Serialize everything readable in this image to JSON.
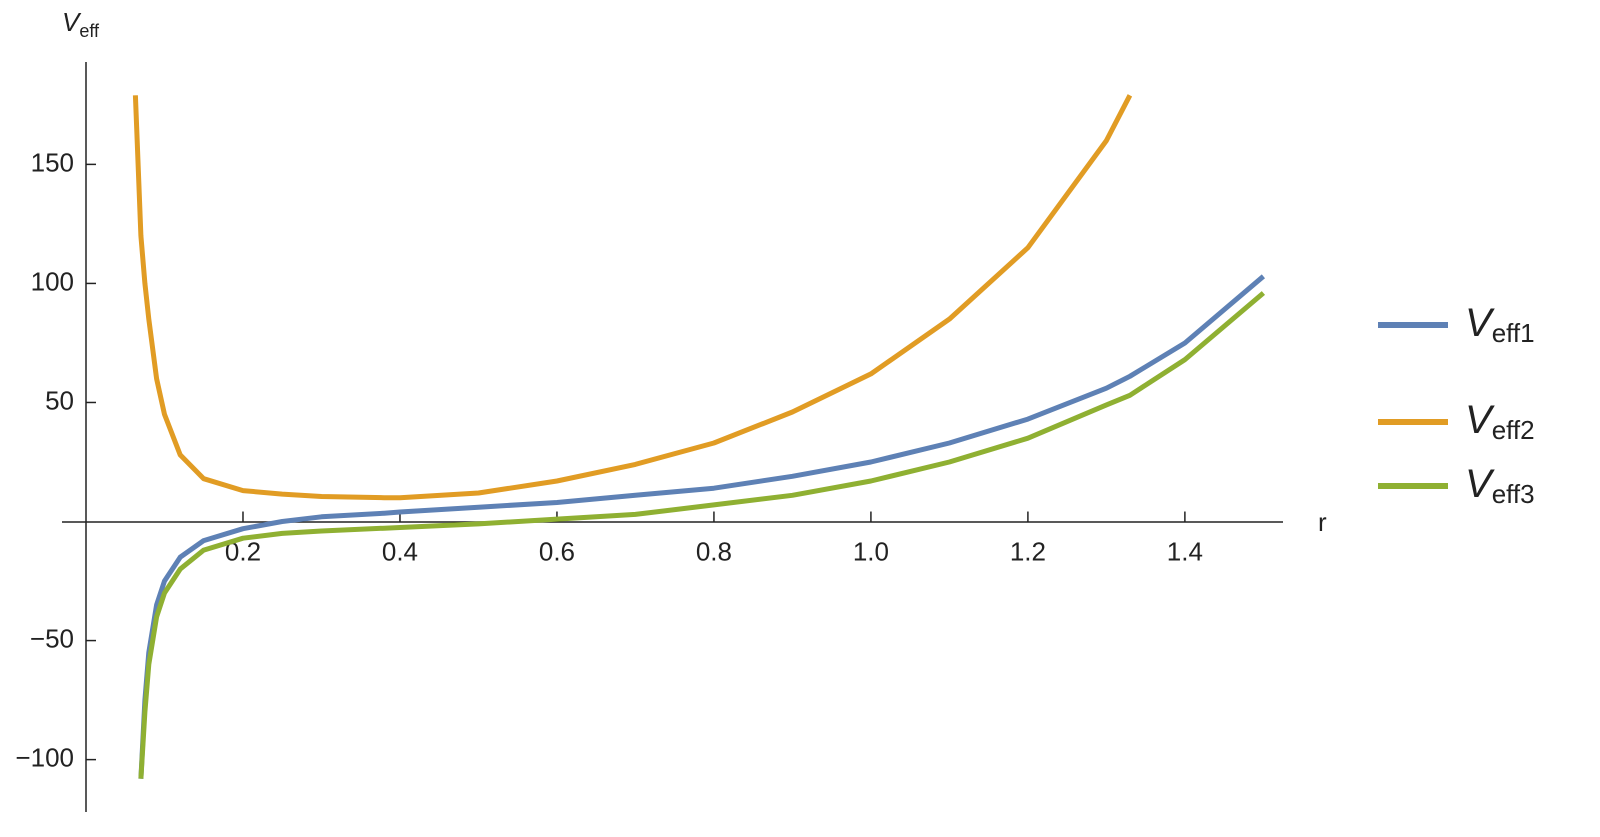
{
  "chart_data": {
    "type": "line",
    "x_label": "r",
    "y_label": "Veff",
    "x": [
      0.063,
      0.07,
      0.075,
      0.08,
      0.09,
      0.1,
      0.12,
      0.15,
      0.2,
      0.25,
      0.3,
      0.38,
      0.4,
      0.5,
      0.6,
      0.7,
      0.8,
      0.9,
      1.0,
      1.1,
      1.2,
      1.3,
      1.33,
      1.4,
      1.5
    ],
    "series": [
      {
        "name": "Veff1",
        "color": "#5e81b5",
        "values": [
          null,
          -108,
          -75,
          -55,
          -35,
          -25,
          -15,
          -8,
          -3,
          0,
          2,
          3.5,
          4,
          6,
          8,
          11,
          14,
          19,
          25,
          33,
          43,
          56,
          61,
          75,
          103
        ]
      },
      {
        "name": "Veff2",
        "color": "#e19c24",
        "values": [
          179,
          120,
          100,
          85,
          60,
          45,
          28,
          18,
          13,
          11.5,
          10.5,
          10,
          10,
          12,
          17,
          24,
          33,
          46,
          62,
          85,
          115,
          160,
          179,
          null,
          null
        ]
      },
      {
        "name": "Veff3",
        "color": "#8fb032",
        "values": [
          null,
          -108,
          -80,
          -60,
          -40,
          -30,
          -20,
          -12,
          -7,
          -5,
          -4,
          -2.8,
          -2.5,
          -1,
          1,
          3,
          7,
          11,
          17,
          25,
          35,
          49,
          53,
          68,
          96
        ]
      }
    ],
    "xlim": [
      0,
      1.525
    ],
    "ylim": [
      -122,
      193
    ],
    "xticks": [
      0.2,
      0.4,
      0.6,
      0.8,
      {
        "value": 1.0,
        "label": "1.0"
      },
      1.2,
      1.4
    ],
    "yticks": [
      {
        "value": -100,
        "label": "−100"
      },
      {
        "value": -50,
        "label": "−50"
      },
      50,
      100,
      150
    ],
    "legend": "right"
  }
}
